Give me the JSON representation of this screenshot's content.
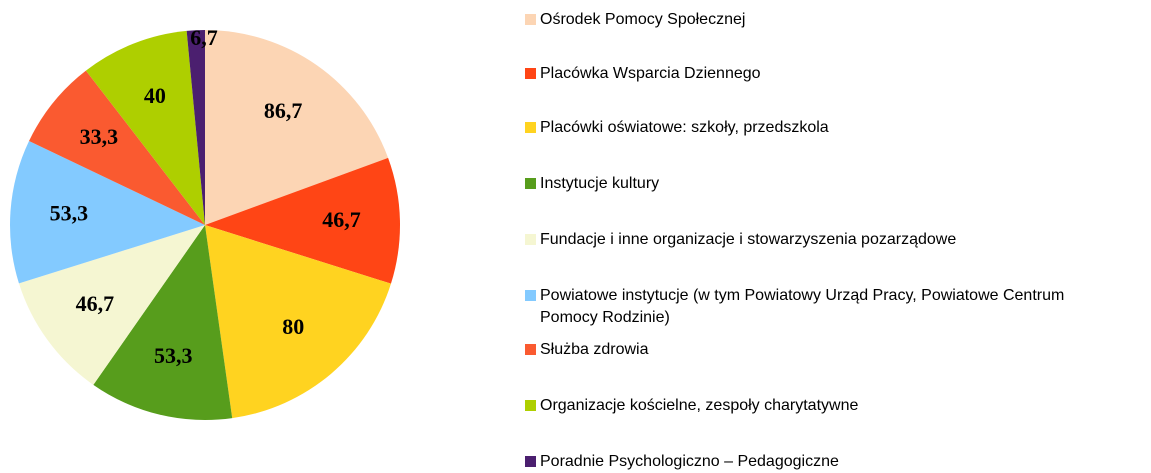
{
  "chart_data": {
    "type": "pie",
    "categories": [
      "Ośrodek Pomocy Społecznej",
      "Placówka Wsparcia Dziennego",
      "Placówki oświatowe: szkoły, przedszkola",
      "Instytucje kultury",
      "Fundacje i inne organizacje i stowarzyszenia pozarządowe",
      "Powiatowe instytucje (w tym Powiatowy Urząd Pracy, Powiatowe Centrum Pomocy Rodzinie)",
      "Służba zdrowia",
      "Organizacje kościelne, zespoły charytatywne",
      "Poradnie Psychologiczno – Pedagogiczne"
    ],
    "values": [
      86.7,
      46.7,
      80,
      53.3,
      46.7,
      53.3,
      33.3,
      40,
      6.7
    ],
    "value_labels": [
      "86,7",
      "46,7",
      "80",
      "53,3",
      "46,7",
      "53,3",
      "33,3",
      "40",
      "6,7"
    ],
    "colors": [
      "#fcd5b4",
      "#ff4515",
      "#ffd320",
      "#579d1c",
      "#f5f6d2",
      "#83caff",
      "#fa5a30",
      "#aecf00",
      "#4b1f6f"
    ],
    "legend": "right"
  }
}
